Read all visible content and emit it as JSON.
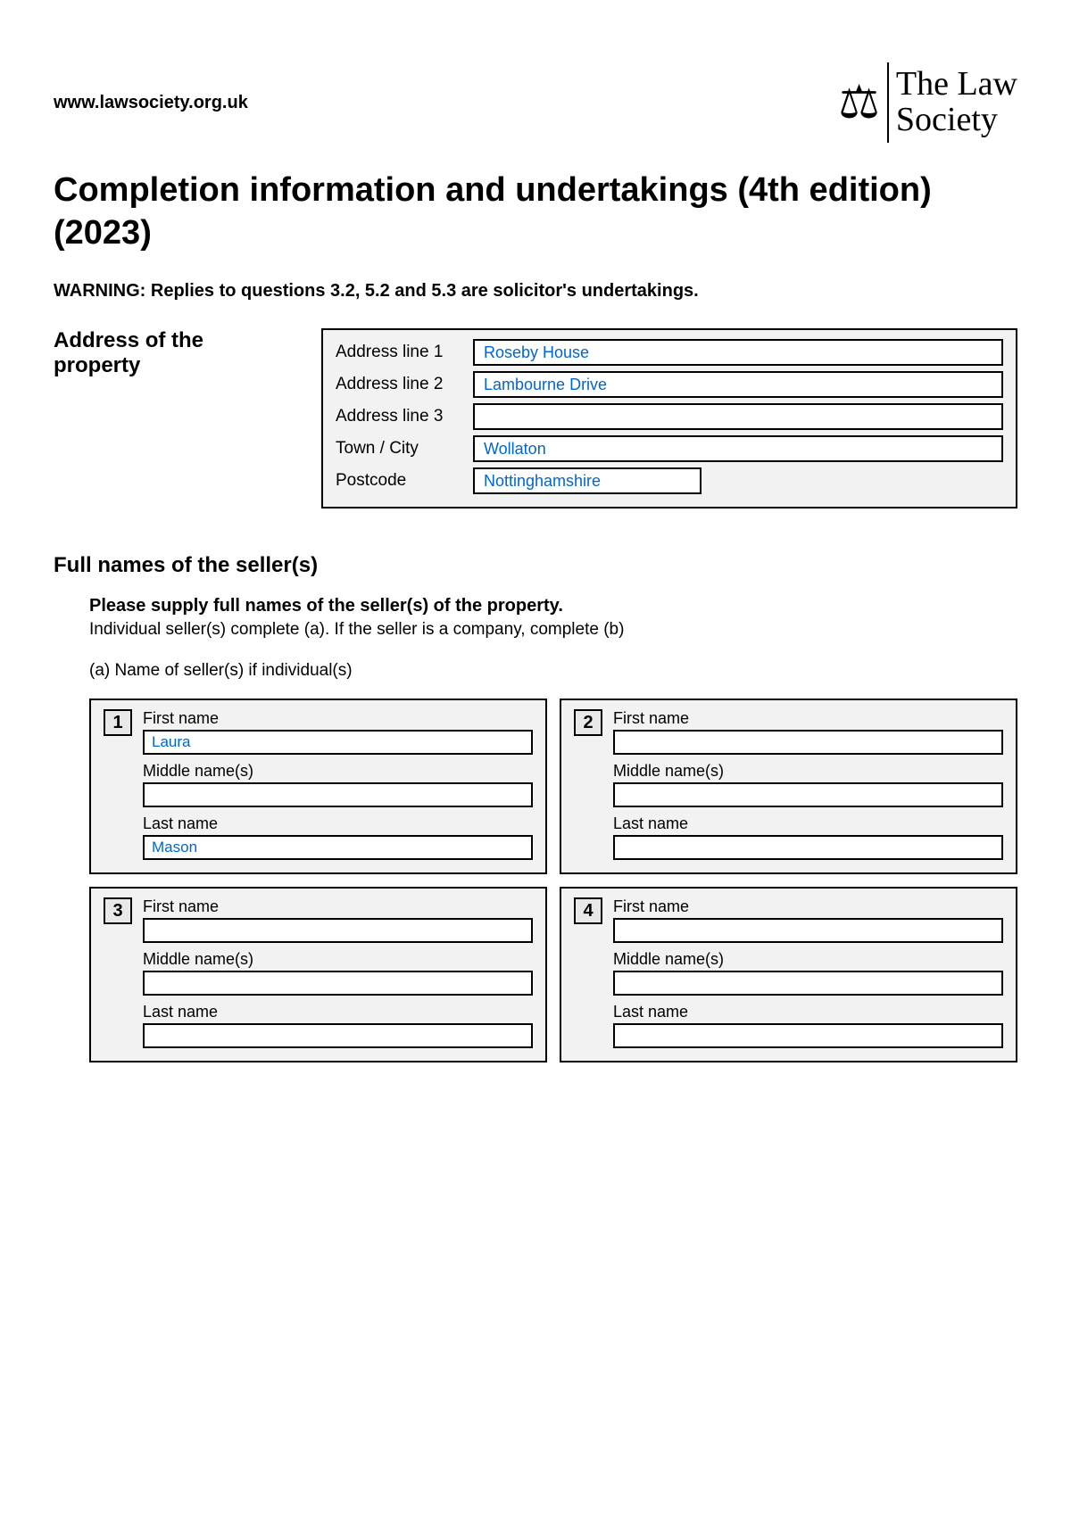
{
  "header": {
    "website": "www.lawsociety.org.uk",
    "logo_line1": "The Law",
    "logo_line2": "Society"
  },
  "title": "Completion information and undertakings (4th edition) (2023)",
  "warning": "WARNING: Replies to questions 3.2, 5.2 and 5.3 are solicitor's undertakings.",
  "address": {
    "heading": "Address of the property",
    "labels": {
      "line1": "Address line 1",
      "line2": "Address line 2",
      "line3": "Address line 3",
      "town": "Town / City",
      "postcode": "Postcode"
    },
    "values": {
      "line1": "Roseby House",
      "line2": "Lambourne Drive",
      "line3": "",
      "town": "Wollaton",
      "postcode": "Nottinghamshire"
    }
  },
  "sellers": {
    "heading": "Full names of the seller(s)",
    "instruction_bold": "Please supply full names of the seller(s) of the property.",
    "instruction": "Individual seller(s) complete (a). If the seller is a company, complete (b)",
    "sub_a": "(a) Name of seller(s) if individual(s)",
    "field_labels": {
      "first": "First name",
      "middle": "Middle name(s)",
      "last": "Last name"
    },
    "entries": [
      {
        "num": "1",
        "first": "Laura",
        "middle": "",
        "last": "Mason"
      },
      {
        "num": "2",
        "first": "",
        "middle": "",
        "last": ""
      },
      {
        "num": "3",
        "first": "",
        "middle": "",
        "last": ""
      },
      {
        "num": "4",
        "first": "",
        "middle": "",
        "last": ""
      }
    ]
  },
  "colors": {
    "input_text": "#0066cc",
    "panel_bg": "#f2f2f2",
    "border": "#000000"
  }
}
